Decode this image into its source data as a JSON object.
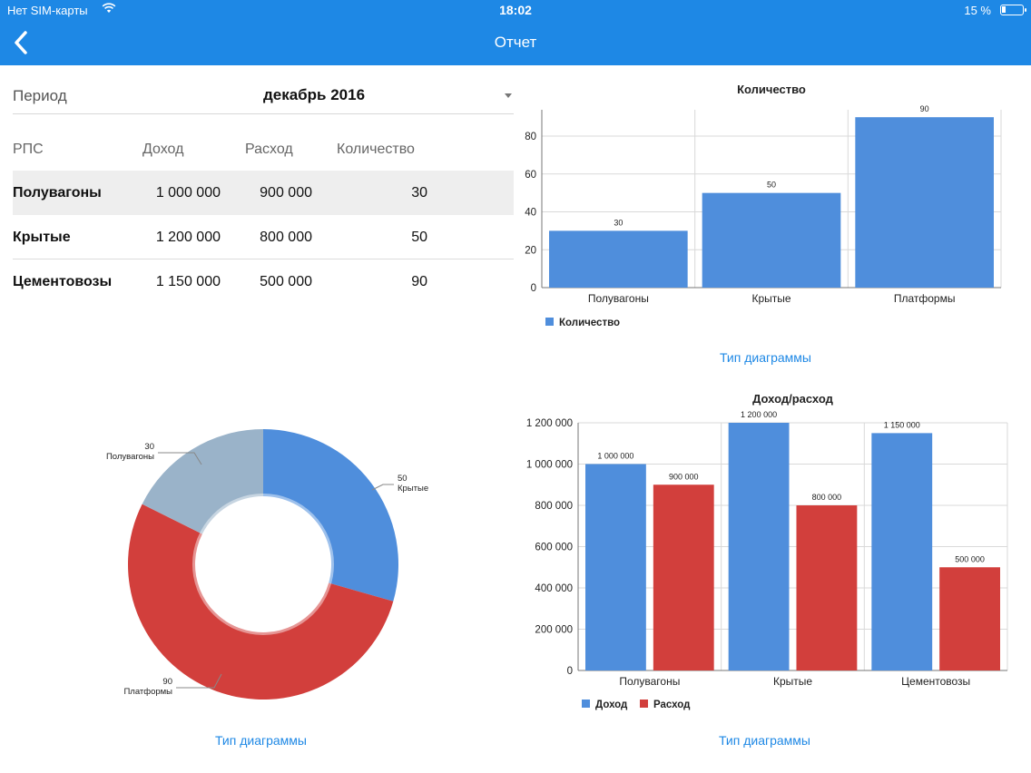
{
  "status_bar": {
    "carrier": "Нет SIM-карты",
    "time": "18:02",
    "battery": "15 %"
  },
  "nav": {
    "title": "Отчет",
    "back_icon": "chevron-left-icon"
  },
  "period": {
    "label": "Период",
    "value": "декабрь 2016"
  },
  "table": {
    "headers": [
      "РПС",
      "Доход",
      "Расход",
      "Количество"
    ],
    "rows": [
      {
        "name": "Полувагоны",
        "income": "1 000 000",
        "expense": "900 000",
        "count": "30"
      },
      {
        "name": "Крытые",
        "income": "1 200 000",
        "expense": "800 000",
        "count": "50"
      },
      {
        "name": "Цементовозы",
        "income": "1 150 000",
        "expense": "500 000",
        "count": "90"
      }
    ]
  },
  "chart_type_label": "Тип диаграммы",
  "colors": {
    "accent": "#1e88e5",
    "blue": "#4f8edc",
    "red": "#d23f3c",
    "gray_blue": "#9ab3c9"
  },
  "chart_data": [
    {
      "type": "bar",
      "title": "Количество",
      "categories": [
        "Полувагоны",
        "Крытые",
        "Платформы"
      ],
      "series": [
        {
          "name": "Количество",
          "values": [
            30,
            50,
            90
          ],
          "color": "#4f8edc"
        }
      ],
      "data_labels": [
        "30",
        "50",
        "90"
      ],
      "y_ticks": [
        "0",
        "20",
        "40",
        "60",
        "80"
      ],
      "ylim": [
        0,
        92
      ],
      "grid": true,
      "legend": "bottom-left"
    },
    {
      "type": "pie",
      "donut": true,
      "slices": [
        {
          "label": "Крытые",
          "value": 50,
          "value_label": "50",
          "color": "#4f8edc"
        },
        {
          "label": "Платформы",
          "value": 90,
          "value_label": "90",
          "color": "#d23f3c"
        },
        {
          "label": "Полувагоны",
          "value": 30,
          "value_label": "30",
          "color": "#9ab3c9"
        }
      ]
    },
    {
      "type": "bar",
      "title": "Доход/расход",
      "categories": [
        "Полувагоны",
        "Крытые",
        "Цементовозы"
      ],
      "series": [
        {
          "name": "Доход",
          "values": [
            1000000,
            1200000,
            1150000
          ],
          "labels": [
            "1 000 000",
            "1 200 000",
            "1 150 000"
          ],
          "color": "#4f8edc"
        },
        {
          "name": "Расход",
          "values": [
            900000,
            800000,
            500000
          ],
          "labels": [
            "900 000",
            "800 000",
            "500 000"
          ],
          "color": "#d23f3c"
        }
      ],
      "y_ticks": [
        "0",
        "200 000",
        "400 000",
        "600 000",
        "800 000",
        "1 000 000",
        "1 200 000"
      ],
      "ylim": [
        0,
        1200000
      ],
      "grid": true,
      "legend": "bottom-left"
    }
  ]
}
